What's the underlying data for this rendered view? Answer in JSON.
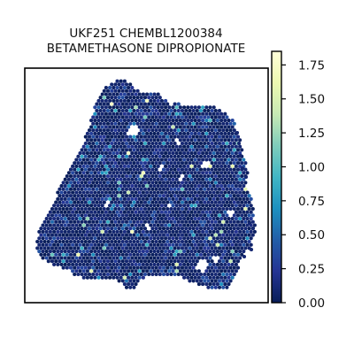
{
  "chart_data": {
    "type": "scatter",
    "title_line1": "UKF251 CHEMBL1200384",
    "title_line2": "BETAMETHASONE DIPROPIONATE",
    "xlabel": "",
    "ylabel": "",
    "axis_ticks_shown": false,
    "grid": false,
    "legend": "colorbar-right",
    "colorscale": {
      "name": "YlGnBu",
      "stops": [
        "#081d58",
        "#253494",
        "#225ea8",
        "#1d91c0",
        "#41b6c4",
        "#7fcdbb",
        "#c7e9b4",
        "#edf8b1",
        "#ffffd9"
      ]
    },
    "colorbar": {
      "min": 0.0,
      "max": 1.85,
      "ticks": [
        0.0,
        0.25,
        0.5,
        0.75,
        1.0,
        1.25,
        1.5,
        1.75
      ],
      "tick_labels": [
        "0.00",
        "0.25",
        "0.50",
        "0.75",
        "1.00",
        "1.25",
        "1.50",
        "1.75"
      ]
    },
    "points_note": ""
  }
}
